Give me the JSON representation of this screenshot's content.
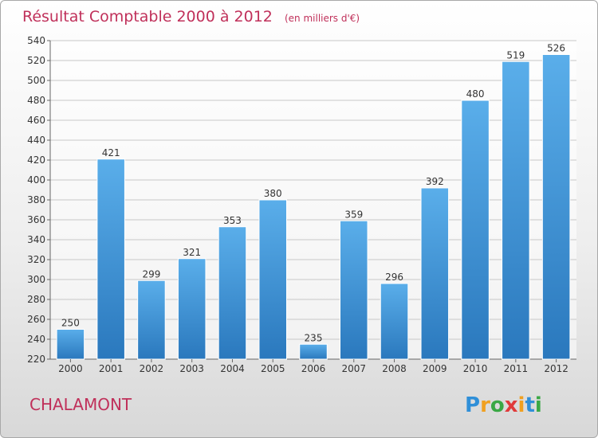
{
  "header": {
    "title": "Résultat Comptable 2000 à 2012",
    "unit": "(en milliers d'€)"
  },
  "commune": "CHALAMONT",
  "logo": {
    "letters": [
      {
        "ch": "P",
        "color": "#2f8fd8"
      },
      {
        "ch": "r",
        "color": "#f0a020"
      },
      {
        "ch": "o",
        "color": "#3aa845"
      },
      {
        "ch": "x",
        "color": "#e03a3a"
      },
      {
        "ch": "i",
        "color": "#f0a020"
      },
      {
        "ch": "t",
        "color": "#2f8fd8"
      },
      {
        "ch": "i",
        "color": "#3aa845"
      }
    ]
  },
  "chart_data": {
    "type": "bar",
    "title": "Résultat Comptable 2000 à 2012",
    "subtitle": "(en milliers d'€)",
    "categories": [
      "2000",
      "2001",
      "2002",
      "2003",
      "2004",
      "2005",
      "2006",
      "2007",
      "2008",
      "2009",
      "2010",
      "2011",
      "2012"
    ],
    "values": [
      250,
      421,
      299,
      321,
      353,
      380,
      235,
      359,
      296,
      392,
      480,
      519,
      526
    ],
    "ylim": [
      220,
      540
    ],
    "yticks": [
      220,
      240,
      260,
      280,
      300,
      320,
      340,
      360,
      380,
      400,
      420,
      440,
      460,
      480,
      500,
      520,
      540
    ],
    "grid": true,
    "bar_color": "#3a8fd6"
  }
}
